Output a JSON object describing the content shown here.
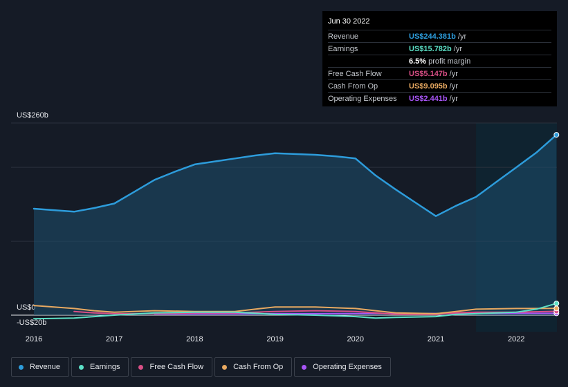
{
  "tooltip": {
    "date": "Jun 30 2022",
    "rows": [
      {
        "label": "Revenue",
        "value": "US$244.381b",
        "unit": "/yr",
        "color": "#2d9cdb"
      },
      {
        "label": "Earnings",
        "value": "US$15.782b",
        "unit": "/yr",
        "color": "#5ce0c6"
      },
      {
        "label": "",
        "value": "6.5%",
        "unit": "profit margin",
        "color": "#ffffff"
      },
      {
        "label": "Free Cash Flow",
        "value": "US$5.147b",
        "unit": "/yr",
        "color": "#d94f86"
      },
      {
        "label": "Cash From Op",
        "value": "US$9.095b",
        "unit": "/yr",
        "color": "#e8a961"
      },
      {
        "label": "Operating Expenses",
        "value": "US$2.441b",
        "unit": "/yr",
        "color": "#a855f7"
      }
    ]
  },
  "legend": [
    {
      "label": "Revenue",
      "color": "#2d9cdb"
    },
    {
      "label": "Earnings",
      "color": "#5ce0c6"
    },
    {
      "label": "Free Cash Flow",
      "color": "#d94f86"
    },
    {
      "label": "Cash From Op",
      "color": "#e8a961"
    },
    {
      "label": "Operating Expenses",
      "color": "#a855f7"
    }
  ],
  "chart_data": {
    "type": "line",
    "y_tick_labels": [
      "US$260b",
      "US$0",
      "-US$20b"
    ],
    "x_tick_labels": [
      "2016",
      "2017",
      "2018",
      "2019",
      "2020",
      "2021",
      "2022"
    ],
    "ylim": [
      -20,
      260
    ],
    "xlim": [
      2015.7,
      2022.5
    ],
    "series": [
      {
        "name": "Revenue",
        "color": "#2d9cdb",
        "x": [
          2016.0,
          2016.5,
          2016.75,
          2017.0,
          2017.25,
          2017.5,
          2017.75,
          2018.0,
          2018.25,
          2018.5,
          2018.75,
          2019.0,
          2019.25,
          2019.5,
          2019.75,
          2020.0,
          2020.25,
          2020.5,
          2020.75,
          2021.0,
          2021.25,
          2021.5,
          2021.75,
          2022.0,
          2022.25,
          2022.5
        ],
        "y": [
          144,
          140,
          145,
          151,
          167,
          183,
          194,
          204,
          208,
          212,
          216,
          219,
          218,
          217,
          215,
          212,
          189,
          170,
          152,
          134,
          148,
          160,
          180,
          200,
          220,
          244
        ]
      },
      {
        "name": "Earnings",
        "color": "#5ce0c6",
        "x": [
          2016.0,
          2016.5,
          2016.75,
          2017.0,
          2017.5,
          2018.0,
          2018.5,
          2019.0,
          2019.5,
          2020.0,
          2020.25,
          2020.5,
          2021.0,
          2021.25,
          2021.5,
          2022.0,
          2022.25,
          2022.5
        ],
        "y": [
          -5,
          -4,
          -2,
          0,
          3,
          4,
          4,
          1,
          0,
          -2,
          -4,
          -3,
          -2,
          1,
          2,
          4,
          8,
          15.8
        ]
      },
      {
        "name": "Free Cash Flow",
        "color": "#d94f86",
        "x": [
          2016.5,
          2016.75,
          2017.0,
          2017.5,
          2018.0,
          2018.5,
          2019.0,
          2019.5,
          2020.0,
          2020.25,
          2020.5,
          2021.0,
          2021.25,
          2021.5,
          2022.0,
          2022.5
        ],
        "y": [
          5,
          3,
          2,
          2,
          3,
          3,
          5,
          6,
          5,
          3,
          1,
          1,
          3,
          4,
          4,
          5.1
        ]
      },
      {
        "name": "Cash From Op",
        "color": "#e8a961",
        "x": [
          2016.0,
          2016.5,
          2016.75,
          2017.0,
          2017.5,
          2018.0,
          2018.5,
          2018.75,
          2019.0,
          2019.5,
          2020.0,
          2020.25,
          2020.5,
          2021.0,
          2021.25,
          2021.5,
          2022.0,
          2022.5
        ],
        "y": [
          13,
          9,
          6,
          4,
          6,
          5,
          5,
          8,
          11,
          11,
          9,
          6,
          3,
          2,
          5,
          8,
          9,
          9.1
        ]
      },
      {
        "name": "Operating Expenses",
        "color": "#a855f7",
        "x": [
          2017.5,
          2018.0,
          2018.5,
          2019.0,
          2019.5,
          2020.0,
          2020.5,
          2021.0,
          2021.5,
          2022.0,
          2022.5
        ],
        "y": [
          1.5,
          1.6,
          1.8,
          2.0,
          2.0,
          2.1,
          2.1,
          2.2,
          2.3,
          2.4,
          2.44
        ]
      }
    ]
  }
}
